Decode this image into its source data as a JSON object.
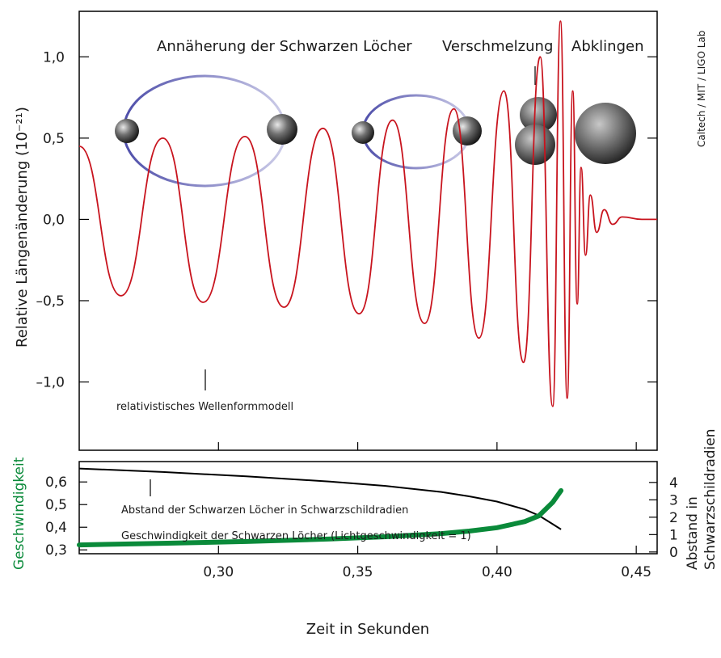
{
  "credit": "Caltech / MIT / LIGO Lab",
  "colors": {
    "wave": "#c8141e",
    "speed": "#0a8a3a",
    "distance": "#000000",
    "axis": "#000000"
  },
  "chart_data": [
    {
      "type": "line",
      "id": "waveform",
      "ylabel": "Relative Längenänderung (10⁻²¹)",
      "phases": [
        "Annäherung der Schwarzen Löcher",
        "Verschmelzung",
        "Abklingen"
      ],
      "annotation": "relativistisches Wellenformmodell",
      "yticks": [
        "1,0",
        "0,5",
        "0,0",
        "–0,5",
        "–1,0"
      ],
      "ytick_values": [
        1.0,
        0.5,
        0.0,
        -0.5,
        -1.0
      ],
      "ylim": [
        -1.42,
        1.28
      ],
      "xlim": [
        0.25,
        0.4575
      ],
      "series": [
        {
          "values_desc": "approximate extrema of the oscillating strain signal (time s, strain)",
          "x": [
            0.25,
            0.265,
            0.28,
            0.2945,
            0.3095,
            0.3235,
            0.3375,
            0.3505,
            0.3625,
            0.374,
            0.3845,
            0.3935,
            0.4025,
            0.4095,
            0.4155,
            0.42,
            0.4228,
            0.4252,
            0.4272,
            0.4288,
            0.4302,
            0.4318,
            0.4335,
            0.4358,
            0.4385,
            0.4415,
            0.445,
            0.452,
            0.4575
          ],
          "y": [
            0.45,
            -0.47,
            0.5,
            -0.51,
            0.51,
            -0.54,
            0.56,
            -0.58,
            0.61,
            -0.64,
            0.68,
            -0.73,
            0.79,
            -0.88,
            1.0,
            -1.15,
            1.22,
            -1.1,
            0.79,
            -0.52,
            0.32,
            -0.22,
            0.15,
            -0.08,
            0.06,
            -0.03,
            0.015,
            0.0,
            0.0
          ]
        }
      ]
    },
    {
      "type": "line",
      "id": "dynamics",
      "xlabel": "Zeit in Sekunden",
      "xticks": [
        "0,30",
        "0,35",
        "0,40",
        "0,45"
      ],
      "xtick_values": [
        0.3,
        0.35,
        0.4,
        0.45
      ],
      "xlim": [
        0.25,
        0.4575
      ],
      "left_axis": {
        "label": "Geschwindigkeit",
        "ticks": [
          "0,6",
          "0,5",
          "0,4",
          "0,3"
        ],
        "tick_values": [
          0.6,
          0.5,
          0.4,
          0.3
        ],
        "ylim": [
          0.283,
          0.69
        ]
      },
      "right_axis": {
        "label_lines": [
          "Abstand in",
          "Schwarzschildradien"
        ],
        "ticks": [
          "4",
          "3",
          "2",
          "1",
          "0"
        ],
        "tick_values": [
          4,
          3,
          2,
          1,
          0
        ],
        "ylim": [
          -0.1,
          5.2
        ]
      },
      "series": [
        {
          "name": "Abstand der Schwarzen Löcher in Schwarzschildradien",
          "axis": "right",
          "x": [
            0.25,
            0.28,
            0.31,
            0.34,
            0.36,
            0.38,
            0.39,
            0.4,
            0.41,
            0.415,
            0.42,
            0.423
          ],
          "y": [
            4.8,
            4.6,
            4.35,
            4.05,
            3.8,
            3.45,
            3.2,
            2.9,
            2.45,
            2.1,
            1.6,
            1.3
          ]
        },
        {
          "name": "Geschwindigkeit der Schwarzen Löcher (Lichtgeschwindigkeit = 1)",
          "axis": "left",
          "x": [
            0.25,
            0.28,
            0.31,
            0.34,
            0.36,
            0.38,
            0.39,
            0.4,
            0.41,
            0.415,
            0.42,
            0.423
          ],
          "y": [
            0.322,
            0.329,
            0.337,
            0.348,
            0.358,
            0.372,
            0.383,
            0.398,
            0.425,
            0.45,
            0.51,
            0.562
          ]
        }
      ]
    }
  ]
}
